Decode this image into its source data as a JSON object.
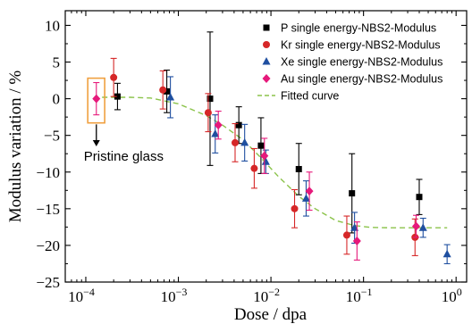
{
  "chart_data": {
    "type": "scatter",
    "xlabel": "Dose / dpa",
    "ylabel": "Modulus variation / %",
    "x_scale": "log",
    "xlim": [
      6e-05,
      1.3
    ],
    "ylim": [
      -25,
      12
    ],
    "x_ticks": [
      {
        "value": 0.0001,
        "base": "10",
        "exp": "−4"
      },
      {
        "value": 0.001,
        "base": "10",
        "exp": "−3"
      },
      {
        "value": 0.01,
        "base": "10",
        "exp": "−2"
      },
      {
        "value": 0.1,
        "base": "10",
        "exp": "−1"
      },
      {
        "value": 1,
        "base": "10",
        "exp": "0"
      }
    ],
    "y_ticks": [
      10,
      5,
      0,
      -5,
      -10,
      -15,
      -20,
      -25
    ],
    "grid": false,
    "legend_position": "top-right",
    "series": [
      {
        "name": "P single energy-NBS2-Modulus",
        "marker": "square",
        "color": "#000000",
        "points": [
          {
            "x": 0.00022,
            "y": 0.3,
            "err": 1.8
          },
          {
            "x": 0.00075,
            "y": 1.0,
            "err": 2.9
          },
          {
            "x": 0.0022,
            "y": 0.0,
            "err": 9.1
          },
          {
            "x": 0.0045,
            "y": -3.6,
            "err": 2.5
          },
          {
            "x": 0.0078,
            "y": -6.4,
            "err": 3.8
          },
          {
            "x": 0.02,
            "y": -9.6,
            "err": 3.5
          },
          {
            "x": 0.075,
            "y": -12.9,
            "err": 5.4
          },
          {
            "x": 0.4,
            "y": -13.4,
            "err": 2.4
          }
        ]
      },
      {
        "name": "Kr single energy-NBS2-Modulus",
        "marker": "circle",
        "color": "#d62728",
        "points": [
          {
            "x": 0.0002,
            "y": 2.9,
            "err": 2.6
          },
          {
            "x": 0.00068,
            "y": 1.2,
            "err": 2.6
          },
          {
            "x": 0.0021,
            "y": -1.9,
            "err": 2.6
          },
          {
            "x": 0.0041,
            "y": -6.0,
            "err": 2.6
          },
          {
            "x": 0.0066,
            "y": -9.5,
            "err": 2.7
          },
          {
            "x": 0.018,
            "y": -15.0,
            "err": 2.6
          },
          {
            "x": 0.066,
            "y": -18.6,
            "err": 2.6
          },
          {
            "x": 0.36,
            "y": -18.9,
            "err": 2.5
          }
        ]
      },
      {
        "name": "Xe single energy-NBS2-Modulus",
        "marker": "triangle",
        "color": "#1f4fa0",
        "points": [
          {
            "x": 0.00082,
            "y": 0.2,
            "err": 2.8
          },
          {
            "x": 0.0025,
            "y": -4.8,
            "err": 2.6
          },
          {
            "x": 0.0052,
            "y": -6.0,
            "err": 2.5
          },
          {
            "x": 0.0088,
            "y": -8.6,
            "err": 1.6
          },
          {
            "x": 0.024,
            "y": -13.6,
            "err": 2.4
          },
          {
            "x": 0.08,
            "y": -17.6,
            "err": 2.1
          },
          {
            "x": 0.44,
            "y": -17.6,
            "err": 1.3
          },
          {
            "x": 0.8,
            "y": -21.2,
            "err": 1.3
          }
        ]
      },
      {
        "name": "Au single energy-NBS2-Modulus",
        "marker": "diamond",
        "color": "#e6197b",
        "points": [
          {
            "x": 0.00013,
            "y": 0.0,
            "err": 2.2
          },
          {
            "x": 0.0027,
            "y": -3.6,
            "err": 1.9
          },
          {
            "x": 0.0085,
            "y": -7.8,
            "err": 2.4
          },
          {
            "x": 0.026,
            "y": -12.6,
            "err": 2.6
          },
          {
            "x": 0.085,
            "y": -19.4,
            "err": 2.6
          },
          {
            "x": 0.37,
            "y": -17.4,
            "err": 1.5
          }
        ]
      }
    ],
    "fitted_curve": {
      "name": "Fitted curve",
      "color": "#8bc34a",
      "style": "dashed",
      "points": [
        [
          0.00015,
          0.2
        ],
        [
          0.0003,
          0.2
        ],
        [
          0.0005,
          0.1
        ],
        [
          0.001,
          -0.7
        ],
        [
          0.002,
          -2.3
        ],
        [
          0.003,
          -3.6
        ],
        [
          0.005,
          -5.6
        ],
        [
          0.008,
          -8.2
        ],
        [
          0.012,
          -10.6
        ],
        [
          0.02,
          -13.3
        ],
        [
          0.03,
          -15.0
        ],
        [
          0.05,
          -16.6
        ],
        [
          0.08,
          -17.3
        ],
        [
          0.12,
          -17.55
        ],
        [
          0.2,
          -17.6
        ],
        [
          0.5,
          -17.6
        ],
        [
          0.8,
          -17.6
        ]
      ]
    },
    "annotation": {
      "text": "Pristine glass",
      "box_color": "#f0a040",
      "box_x_range": [
        0.000105,
        0.00016
      ],
      "box_y_range": [
        -3.3,
        2.8
      ],
      "arrow_x": 0.00013,
      "arrow_y_from": -3.5,
      "arrow_y_to": -6.5
    }
  }
}
